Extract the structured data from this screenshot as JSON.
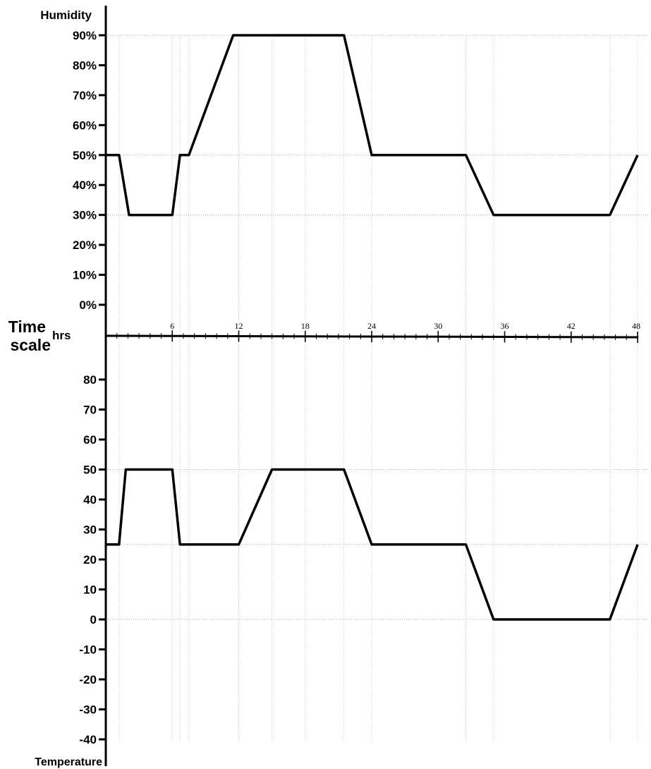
{
  "chart_data": [
    {
      "type": "line",
      "ylabel": "Humidity",
      "y_unit": "%",
      "ylim": [
        0,
        90
      ],
      "yticks": [
        "90%",
        "80%",
        "70%",
        "60%",
        "50%",
        "40%",
        "30%",
        "20%",
        "10%",
        "0%"
      ],
      "grid": true,
      "series": [
        {
          "x": [
            0,
            1.2,
            2.1,
            6,
            6.7,
            7.5,
            11.5,
            21.5,
            24,
            32.5,
            35,
            45.5,
            48
          ],
          "y": [
            50,
            50,
            30,
            30,
            50,
            50,
            90,
            90,
            50,
            50,
            30,
            30,
            50
          ]
        }
      ]
    },
    {
      "type": "line",
      "ylabel": "Temperature",
      "ylim": [
        -40,
        80
      ],
      "yticks": [
        "80",
        "70",
        "60",
        "50",
        "40",
        "30",
        "20",
        "10",
        "0",
        "-10",
        "-20",
        "-30",
        "-40"
      ],
      "grid": true,
      "series": [
        {
          "x": [
            0,
            1.2,
            1.8,
            6,
            6.7,
            12,
            15,
            21.5,
            24,
            32.5,
            35,
            45.5,
            48
          ],
          "y": [
            25,
            25,
            50,
            50,
            25,
            25,
            50,
            50,
            25,
            25,
            0,
            0,
            25
          ]
        }
      ]
    }
  ],
  "time_axis": {
    "label_line1": "Time",
    "label_line2": "scale",
    "unit": "hrs",
    "range": [
      0,
      48
    ],
    "ticks": [
      "6",
      "12",
      "18",
      "24",
      "30",
      "36",
      "42",
      "48"
    ]
  }
}
